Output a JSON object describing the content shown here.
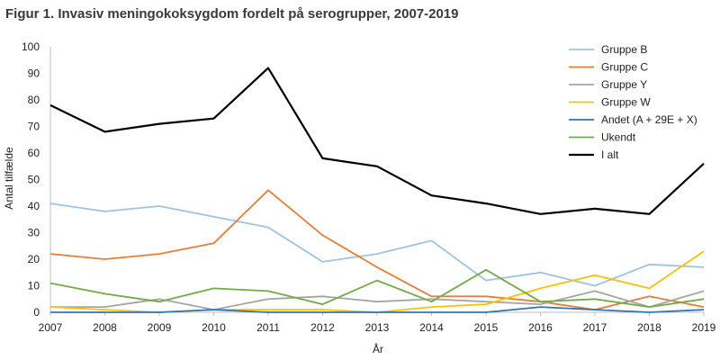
{
  "chart_data": {
    "type": "line",
    "title": "Figur 1. Invasiv meningokoksygdom fordelt på serogrupper, 2007-2019",
    "xlabel": "År",
    "ylabel": "Antal tilfælde",
    "ylim": [
      0,
      100
    ],
    "yticks": [
      0,
      10,
      20,
      30,
      40,
      50,
      60,
      70,
      80,
      90,
      100
    ],
    "x": [
      "2007",
      "2008",
      "2009",
      "2010",
      "2011",
      "2012",
      "2013",
      "2014",
      "2015",
      "2016",
      "2017",
      "2018",
      "2019"
    ],
    "grid": false,
    "legend_position": "top-right",
    "series": [
      {
        "name": "Gruppe B",
        "color": "#9dc3e6",
        "values": [
          41,
          38,
          40,
          36,
          32,
          19,
          22,
          27,
          12,
          15,
          10,
          18,
          17
        ]
      },
      {
        "name": "Gruppe C",
        "color": "#ed7d31",
        "values": [
          22,
          20,
          22,
          26,
          46,
          29,
          17,
          6,
          6,
          4,
          1,
          6,
          2
        ]
      },
      {
        "name": "Gruppe Y",
        "color": "#a5a5a5",
        "values": [
          2,
          2,
          5,
          1,
          5,
          6,
          4,
          5,
          4,
          3,
          8,
          2,
          8
        ]
      },
      {
        "name": "Gruppe W",
        "color": "#ffc000",
        "values": [
          2,
          1,
          0,
          1,
          1,
          1,
          0,
          2,
          3,
          9,
          14,
          9,
          23
        ]
      },
      {
        "name": "Andet (A + 29E + X)",
        "color": "#2e75b6",
        "values": [
          0,
          0,
          0,
          1,
          0,
          0,
          0,
          0,
          0,
          2,
          1,
          0,
          1
        ]
      },
      {
        "name": "Ukendt",
        "color": "#70ad47",
        "values": [
          11,
          7,
          4,
          9,
          8,
          3,
          12,
          4,
          16,
          4,
          5,
          2,
          5
        ]
      },
      {
        "name": "I alt",
        "color": "#000000",
        "values": [
          78,
          68,
          71,
          73,
          92,
          58,
          55,
          44,
          41,
          37,
          39,
          37,
          56
        ]
      }
    ]
  }
}
